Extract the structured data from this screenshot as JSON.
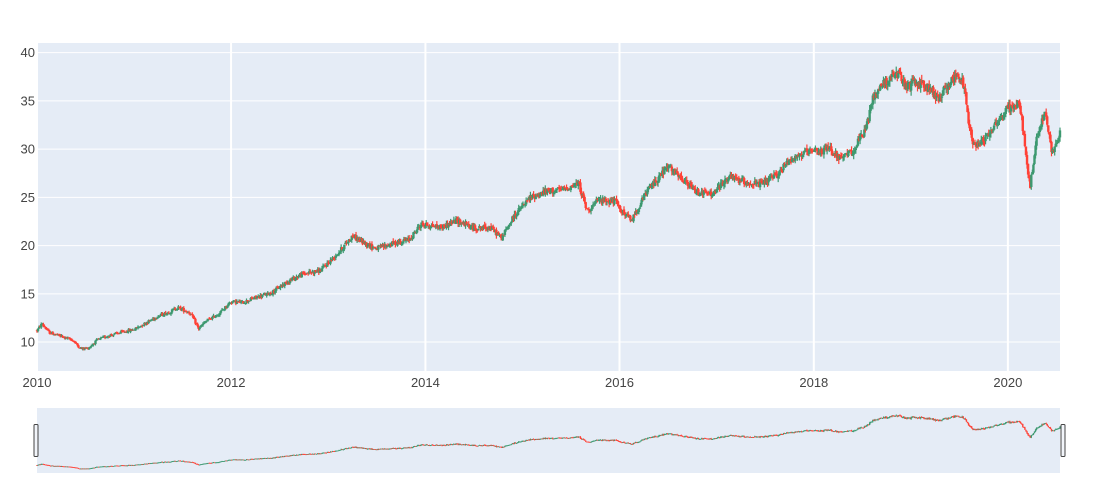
{
  "chart_data": {
    "type": "candlestick",
    "title": "",
    "xlabel": "",
    "ylabel": "",
    "x_ticks": [
      "2010",
      "2012",
      "2014",
      "2016",
      "2018",
      "2020"
    ],
    "x_range": [
      "2010-01-01",
      "2020-07-15"
    ],
    "y_ticks": [
      10,
      15,
      20,
      25,
      30,
      35,
      40
    ],
    "y_range": [
      7,
      41
    ],
    "grid": true,
    "increasing_color": "#3d9970",
    "decreasing_color": "#ff4136",
    "plot_background": "#e5ecf6",
    "range_slider": true,
    "trend": [
      [
        "2010-01-01",
        11.2
      ],
      [
        "2010-01-20",
        11.9
      ],
      [
        "2010-02-15",
        11.0
      ],
      [
        "2010-04-01",
        10.6
      ],
      [
        "2010-05-15",
        10.2
      ],
      [
        "2010-06-15",
        9.3
      ],
      [
        "2010-07-15",
        9.4
      ],
      [
        "2010-08-15",
        10.2
      ],
      [
        "2010-10-01",
        10.7
      ],
      [
        "2010-11-15",
        11.0
      ],
      [
        "2011-01-01",
        11.3
      ],
      [
        "2011-02-15",
        12.0
      ],
      [
        "2011-04-01",
        12.7
      ],
      [
        "2011-05-15",
        13.1
      ],
      [
        "2011-06-15",
        13.6
      ],
      [
        "2011-08-01",
        13.0
      ],
      [
        "2011-09-01",
        11.4
      ],
      [
        "2011-10-01",
        12.2
      ],
      [
        "2011-11-15",
        12.9
      ],
      [
        "2012-01-01",
        14.2
      ],
      [
        "2012-02-15",
        14.1
      ],
      [
        "2012-04-01",
        14.6
      ],
      [
        "2012-06-01",
        15.1
      ],
      [
        "2012-08-01",
        16.3
      ],
      [
        "2012-10-01",
        17.1
      ],
      [
        "2012-12-01",
        17.4
      ],
      [
        "2013-01-15",
        18.6
      ],
      [
        "2013-02-15",
        19.5
      ],
      [
        "2013-04-01",
        21.0
      ],
      [
        "2013-05-15",
        20.3
      ],
      [
        "2013-07-01",
        19.7
      ],
      [
        "2013-09-01",
        20.2
      ],
      [
        "2013-11-01",
        20.6
      ],
      [
        "2013-12-15",
        22.2
      ],
      [
        "2014-01-15",
        22.1
      ],
      [
        "2014-03-01",
        21.9
      ],
      [
        "2014-05-01",
        22.6
      ],
      [
        "2014-07-01",
        21.8
      ],
      [
        "2014-09-01",
        21.9
      ],
      [
        "2014-10-15",
        20.8
      ],
      [
        "2014-12-01",
        23.1
      ],
      [
        "2015-02-01",
        25.0
      ],
      [
        "2015-04-01",
        25.6
      ],
      [
        "2015-06-01",
        25.8
      ],
      [
        "2015-08-01",
        26.4
      ],
      [
        "2015-09-01",
        23.6
      ],
      [
        "2015-10-15",
        24.7
      ],
      [
        "2015-12-15",
        24.6
      ],
      [
        "2016-01-15",
        23.4
      ],
      [
        "2016-02-15",
        22.6
      ],
      [
        "2016-04-15",
        25.7
      ],
      [
        "2016-06-01",
        27.2
      ],
      [
        "2016-07-01",
        28.2
      ],
      [
        "2016-08-15",
        27.0
      ],
      [
        "2016-10-15",
        25.6
      ],
      [
        "2016-12-15",
        25.3
      ],
      [
        "2017-02-15",
        27.1
      ],
      [
        "2017-04-15",
        26.6
      ],
      [
        "2017-06-15",
        26.3
      ],
      [
        "2017-08-15",
        27.3
      ],
      [
        "2017-10-01",
        28.9
      ],
      [
        "2017-12-01",
        29.6
      ],
      [
        "2018-01-15",
        29.7
      ],
      [
        "2018-03-01",
        30.1
      ],
      [
        "2018-04-15",
        28.9
      ],
      [
        "2018-06-01",
        30.0
      ],
      [
        "2018-07-15",
        32.0
      ],
      [
        "2018-08-15",
        35.6
      ],
      [
        "2018-10-01",
        37.1
      ],
      [
        "2018-11-15",
        37.8
      ],
      [
        "2018-12-15",
        36.3
      ],
      [
        "2019-01-15",
        37.0
      ],
      [
        "2019-03-01",
        36.5
      ],
      [
        "2019-04-15",
        35.2
      ],
      [
        "2019-06-01",
        37.2
      ],
      [
        "2019-07-01",
        37.6
      ],
      [
        "2019-07-20",
        36.5
      ],
      [
        "2019-08-05",
        33.0
      ],
      [
        "2019-08-25",
        30.4
      ],
      [
        "2019-10-01",
        31.0
      ],
      [
        "2019-11-15",
        32.6
      ],
      [
        "2020-01-01",
        34.2
      ],
      [
        "2020-02-15",
        34.8
      ],
      [
        "2020-03-10",
        29.0
      ],
      [
        "2020-03-25",
        26.2
      ],
      [
        "2020-04-20",
        31.5
      ],
      [
        "2020-05-20",
        33.8
      ],
      [
        "2020-06-15",
        29.6
      ],
      [
        "2020-07-15",
        31.8
      ]
    ]
  }
}
